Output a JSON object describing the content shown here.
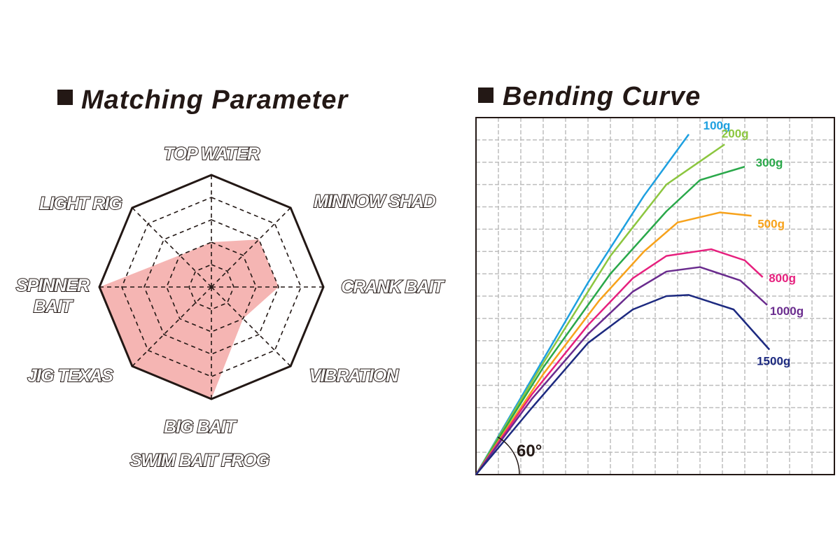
{
  "chart_data": [
    {
      "type": "radar",
      "title": "Matching Parameter",
      "categories": [
        "TOP WATER",
        "MINNOW SHAD",
        "CRANK BAIT",
        "VIBRATION",
        "BIG BAIT\nSWIM BAIT  FROG",
        "JIG  TEXAS",
        "SPINNER\nBAIT",
        "LIGHT RIG"
      ],
      "values": [
        2,
        3,
        3,
        2,
        5,
        5,
        5,
        2
      ],
      "rlim": [
        0,
        5
      ],
      "rticks": [
        1,
        2,
        3,
        4,
        5
      ],
      "color": "#f5b5b3"
    },
    {
      "type": "line",
      "title": "Bending Curve",
      "annotation": "60°",
      "xlim": [
        0,
        16
      ],
      "ylim": [
        0,
        16
      ],
      "xticks": [
        0,
        1,
        2,
        3,
        4,
        5,
        6,
        7,
        8,
        9,
        10,
        11,
        12,
        13,
        14,
        15,
        16
      ],
      "yticks": [
        0,
        1,
        2,
        3,
        4,
        5,
        6,
        7,
        8,
        9,
        10,
        11,
        12,
        13,
        14,
        15,
        16
      ],
      "grid": true,
      "series": [
        {
          "name": "100g",
          "color": "#1ea0e0",
          "x": [
            0,
            2.5,
            5,
            7.5,
            9.5
          ],
          "values": [
            0,
            4.3,
            8.6,
            12.5,
            15.25
          ]
        },
        {
          "name": "200g",
          "color": "#8cc63f",
          "x": [
            0,
            3,
            6,
            8.5,
            11.1
          ],
          "values": [
            0,
            5,
            9.8,
            13,
            14.8
          ]
        },
        {
          "name": "300g",
          "color": "#2aa84a",
          "x": [
            0,
            3,
            6,
            8.5,
            10,
            12
          ],
          "values": [
            0,
            4.8,
            9,
            11.8,
            13.2,
            13.8
          ]
        },
        {
          "name": "500g",
          "color": "#f7a21b",
          "x": [
            0,
            3,
            5.5,
            7.5,
            9,
            10.9,
            12.3
          ],
          "values": [
            0,
            4.5,
            7.8,
            10,
            11.3,
            11.75,
            11.6
          ]
        },
        {
          "name": "800g",
          "color": "#e6207e",
          "x": [
            0,
            2.5,
            5,
            7,
            8.5,
            10.5,
            12,
            12.8
          ],
          "values": [
            0,
            3.6,
            6.7,
            8.8,
            9.8,
            10.1,
            9.6,
            8.85
          ]
        },
        {
          "name": "1000g",
          "color": "#6a2c8e",
          "x": [
            0,
            2.5,
            5,
            7,
            8.5,
            10,
            11.8,
            13
          ],
          "values": [
            0,
            3.4,
            6.3,
            8.2,
            9.1,
            9.3,
            8.7,
            7.6
          ]
        },
        {
          "name": "1500g",
          "color": "#1d2a80",
          "x": [
            0,
            2.5,
            5,
            7,
            8.5,
            9.5,
            11.5,
            13.1
          ],
          "values": [
            0,
            3,
            5.9,
            7.4,
            8,
            8.05,
            7.4,
            5.6
          ]
        }
      ]
    }
  ]
}
